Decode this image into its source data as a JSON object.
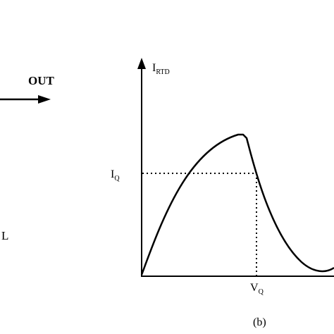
{
  "circuit": {
    "out_label": "OUT",
    "load_label": "L"
  },
  "graph": {
    "y_axis_main": "I",
    "y_axis_sub": "RTD",
    "iq_main": "I",
    "iq_sub": "Q",
    "vq_main": "V",
    "vq_sub": "Q",
    "caption": "(b)"
  }
}
